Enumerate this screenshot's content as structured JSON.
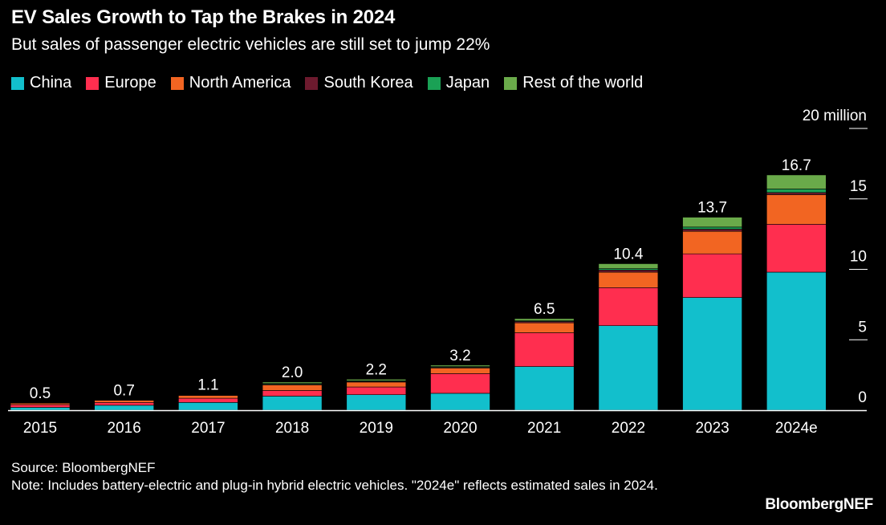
{
  "chart_data": {
    "type": "bar",
    "stacked": true,
    "title": "EV Sales Growth to Tap the Brakes in 2024",
    "subtitle": "But sales of passenger electric vehicles are still set to jump 22%",
    "categories": [
      "2015",
      "2016",
      "2017",
      "2018",
      "2019",
      "2020",
      "2021",
      "2022",
      "2023",
      "2024e"
    ],
    "totals": [
      "0.5",
      "0.7",
      "1.1",
      "2.0",
      "2.2",
      "3.2",
      "6.5",
      "10.4",
      "13.7",
      "16.7"
    ],
    "series": [
      {
        "name": "China",
        "color": "#12bfcc",
        "values": [
          0.2,
          0.35,
          0.55,
          1.0,
          1.1,
          1.2,
          3.1,
          6.0,
          8.0,
          9.8
        ]
      },
      {
        "name": "Europe",
        "color": "#ff2e4f",
        "values": [
          0.2,
          0.2,
          0.3,
          0.4,
          0.55,
          1.4,
          2.4,
          2.7,
          3.1,
          3.4
        ]
      },
      {
        "name": "North America",
        "color": "#f26522",
        "values": [
          0.1,
          0.15,
          0.2,
          0.4,
          0.35,
          0.4,
          0.7,
          1.1,
          1.6,
          2.1
        ]
      },
      {
        "name": "South Korea",
        "color": "#6d1a2e",
        "values": [
          0.0,
          0.0,
          0.02,
          0.05,
          0.05,
          0.05,
          0.1,
          0.15,
          0.15,
          0.15
        ]
      },
      {
        "name": "Japan",
        "color": "#1aa155",
        "values": [
          0.0,
          0.0,
          0.02,
          0.05,
          0.05,
          0.05,
          0.05,
          0.1,
          0.15,
          0.25
        ]
      },
      {
        "name": "Rest of the world",
        "color": "#6aaa4a",
        "values": [
          0.0,
          0.0,
          0.01,
          0.1,
          0.1,
          0.1,
          0.15,
          0.35,
          0.7,
          1.0
        ]
      }
    ],
    "ylim": [
      0,
      20
    ],
    "yticks": [
      0,
      5,
      10,
      15,
      20
    ],
    "ytick_labels": [
      "0",
      "5",
      "10",
      "15",
      "20 million"
    ],
    "legend_position": "top-left",
    "grid": false
  },
  "footer": {
    "source": "Source: BloombergNEF",
    "note": "Note: Includes battery-electric and plug-in hybrid electric vehicles. \"2024e\" reflects estimated sales in 2024."
  },
  "brand": "BloombergNEF"
}
